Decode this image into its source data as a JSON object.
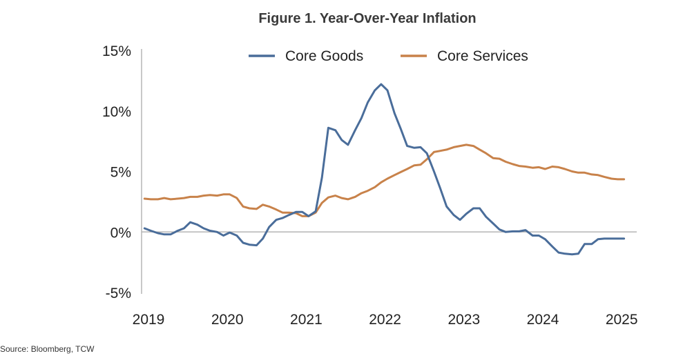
{
  "chart_data": {
    "type": "line",
    "title": "Figure 1. Year-Over-Year Inflation",
    "source": "Source: Bloomberg, TCW",
    "xlabel": "",
    "ylabel": "",
    "xlim": [
      2019,
      2025.2
    ],
    "ylim": [
      -5,
      15
    ],
    "y_ticks": [
      {
        "value": 15,
        "label": "15%"
      },
      {
        "value": 10,
        "label": "10%"
      },
      {
        "value": 5,
        "label": "5%"
      },
      {
        "value": 0,
        "label": "0%"
      },
      {
        "value": -5,
        "label": "-5%"
      }
    ],
    "x_ticks": [
      {
        "value": 2019,
        "label": "2019"
      },
      {
        "value": 2020,
        "label": "2020"
      },
      {
        "value": 2021,
        "label": "2021"
      },
      {
        "value": 2022,
        "label": "2022"
      },
      {
        "value": 2023,
        "label": "2023"
      },
      {
        "value": 2024,
        "label": "2024"
      },
      {
        "value": 2025,
        "label": "2025"
      }
    ],
    "legend_position": "top-center",
    "series": [
      {
        "name": "Core Goods",
        "color": "#4a6d9a",
        "x": [
          2018.95,
          2019.03,
          2019.12,
          2019.2,
          2019.28,
          2019.37,
          2019.45,
          2019.53,
          2019.62,
          2019.7,
          2019.78,
          2019.87,
          2019.95,
          2020.03,
          2020.12,
          2020.2,
          2020.28,
          2020.37,
          2020.45,
          2020.53,
          2020.62,
          2020.7,
          2020.78,
          2020.87,
          2020.95,
          2021.03,
          2021.12,
          2021.2,
          2021.28,
          2021.37,
          2021.45,
          2021.53,
          2021.62,
          2021.7,
          2021.78,
          2021.87,
          2021.95,
          2022.03,
          2022.12,
          2022.2,
          2022.28,
          2022.37,
          2022.45,
          2022.53,
          2022.62,
          2022.7,
          2022.78,
          2022.87,
          2022.95,
          2023.03,
          2023.12,
          2023.2,
          2023.28,
          2023.37,
          2023.45,
          2023.53,
          2023.62,
          2023.7,
          2023.78,
          2023.87,
          2023.95,
          2024.03,
          2024.12,
          2024.2,
          2024.28,
          2024.37,
          2024.45,
          2024.53,
          2024.62,
          2024.7,
          2024.78,
          2024.87,
          2024.95,
          2025.03
        ],
        "values": [
          0.3,
          0.1,
          -0.1,
          -0.2,
          -0.2,
          0.1,
          0.3,
          0.8,
          0.6,
          0.3,
          0.1,
          0.0,
          -0.3,
          -0.05,
          -0.3,
          -0.9,
          -1.05,
          -1.1,
          -0.55,
          0.4,
          1.0,
          1.15,
          1.4,
          1.65,
          1.65,
          1.3,
          1.7,
          4.5,
          8.6,
          8.4,
          7.6,
          7.2,
          8.4,
          9.4,
          10.7,
          11.7,
          12.2,
          11.7,
          9.8,
          8.5,
          7.1,
          6.95,
          7.0,
          6.5,
          5.0,
          3.6,
          2.1,
          1.4,
          1.0,
          1.5,
          1.95,
          1.95,
          1.25,
          0.7,
          0.2,
          0.0,
          0.05,
          0.05,
          0.15,
          -0.3,
          -0.3,
          -0.6,
          -1.2,
          -1.7,
          -1.8,
          -1.85,
          -1.8,
          -1.0,
          -1.0,
          -0.6,
          -0.55,
          -0.55,
          -0.55,
          -0.55
        ]
      },
      {
        "name": "Core Services",
        "color": "#c8824a",
        "x": [
          2018.95,
          2019.03,
          2019.12,
          2019.2,
          2019.28,
          2019.37,
          2019.45,
          2019.53,
          2019.62,
          2019.7,
          2019.78,
          2019.87,
          2019.95,
          2020.03,
          2020.12,
          2020.2,
          2020.28,
          2020.37,
          2020.45,
          2020.53,
          2020.62,
          2020.7,
          2020.78,
          2020.87,
          2020.95,
          2021.03,
          2021.12,
          2021.2,
          2021.28,
          2021.37,
          2021.45,
          2021.53,
          2021.62,
          2021.7,
          2021.78,
          2021.87,
          2021.95,
          2022.03,
          2022.12,
          2022.2,
          2022.28,
          2022.37,
          2022.45,
          2022.53,
          2022.62,
          2022.7,
          2022.78,
          2022.87,
          2022.95,
          2023.03,
          2023.12,
          2023.2,
          2023.28,
          2023.37,
          2023.45,
          2023.53,
          2023.62,
          2023.7,
          2023.78,
          2023.87,
          2023.95,
          2024.03,
          2024.12,
          2024.2,
          2024.28,
          2024.37,
          2024.45,
          2024.53,
          2024.62,
          2024.7,
          2024.78,
          2024.87,
          2024.95,
          2025.03
        ],
        "values": [
          2.75,
          2.7,
          2.7,
          2.8,
          2.7,
          2.75,
          2.8,
          2.9,
          2.9,
          3.0,
          3.05,
          3.0,
          3.1,
          3.1,
          2.8,
          2.1,
          1.95,
          1.9,
          2.25,
          2.1,
          1.85,
          1.6,
          1.6,
          1.55,
          1.3,
          1.3,
          1.6,
          2.4,
          2.85,
          3.0,
          2.8,
          2.7,
          2.9,
          3.2,
          3.4,
          3.7,
          4.1,
          4.4,
          4.7,
          4.95,
          5.2,
          5.5,
          5.55,
          6.0,
          6.6,
          6.7,
          6.8,
          7.0,
          7.1,
          7.2,
          7.1,
          6.8,
          6.5,
          6.1,
          6.05,
          5.8,
          5.6,
          5.45,
          5.4,
          5.3,
          5.35,
          5.2,
          5.4,
          5.35,
          5.2,
          5.0,
          4.9,
          4.9,
          4.75,
          4.7,
          4.55,
          4.4,
          4.35,
          4.35
        ]
      }
    ]
  }
}
